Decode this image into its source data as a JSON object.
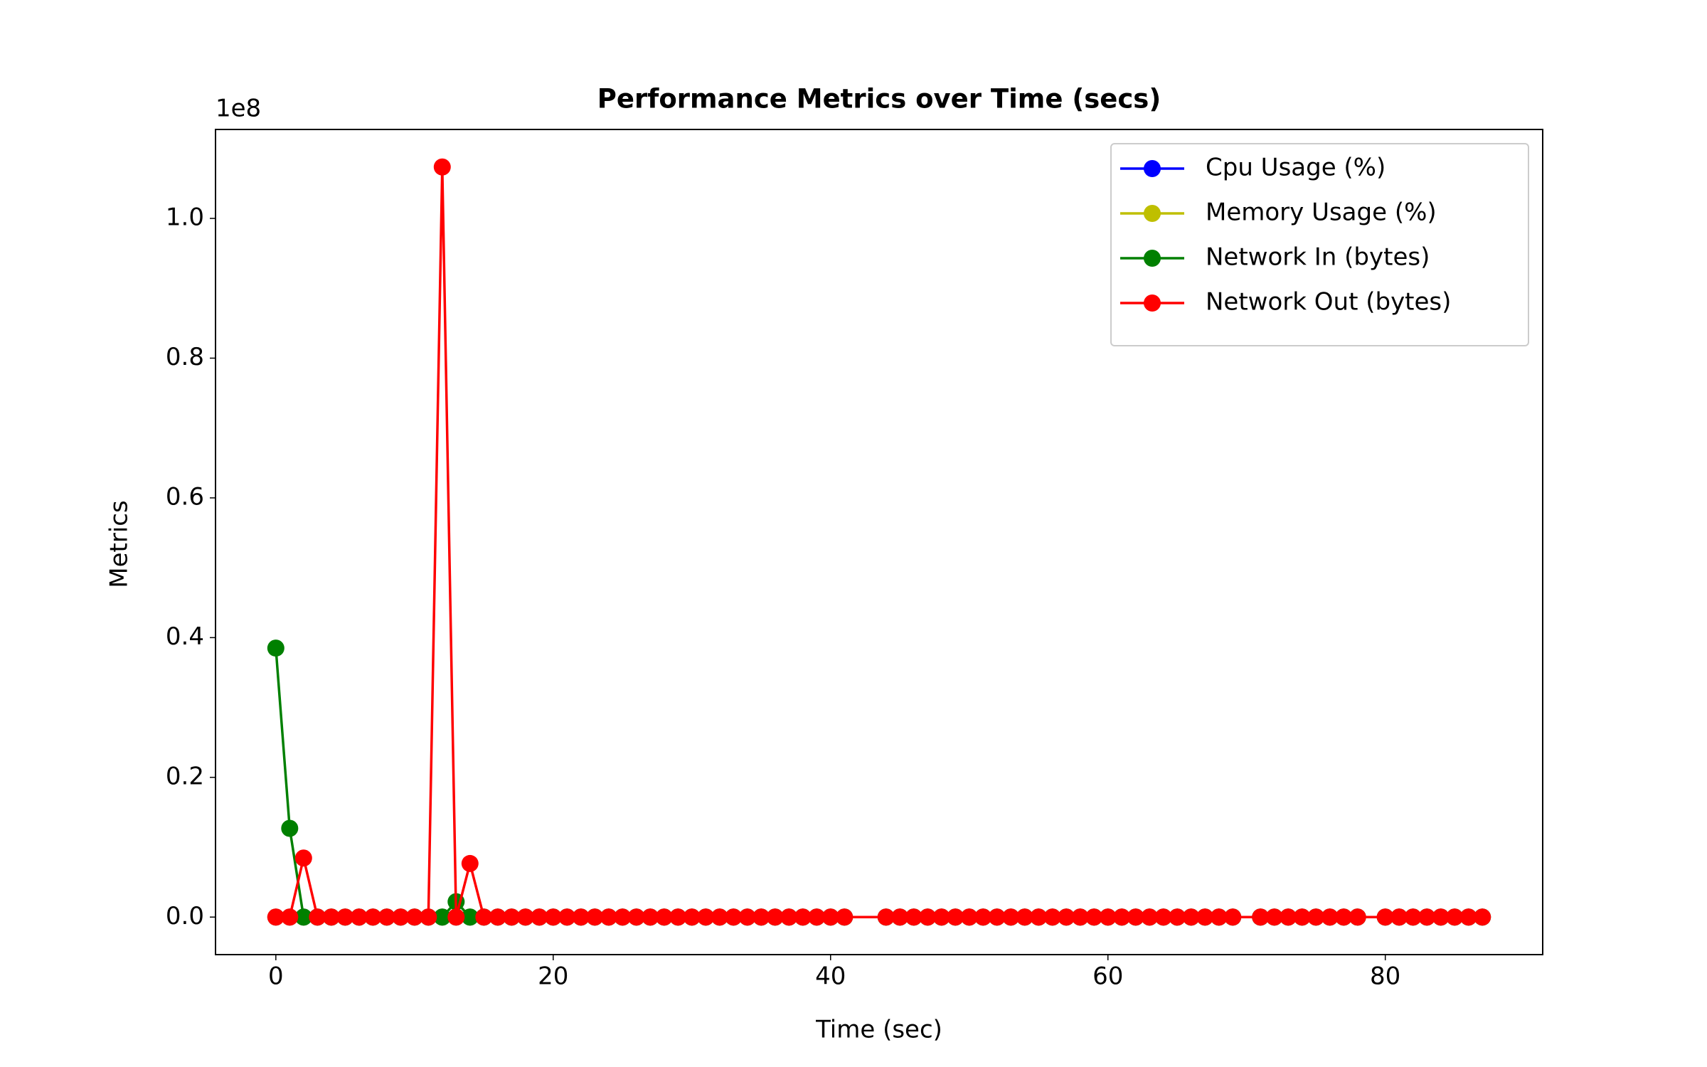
{
  "chart_data": {
    "type": "line",
    "title": "Performance Metrics over Time (secs)",
    "x_label": "Time (sec)",
    "y_label": "Metrics",
    "y_offset_label": "1e8",
    "x": [
      0,
      1,
      2,
      3,
      4,
      5,
      6,
      7,
      8,
      9,
      10,
      11,
      12,
      13,
      14,
      15,
      16,
      17,
      18,
      19,
      20,
      21,
      22,
      23,
      24,
      25,
      26,
      27,
      28,
      29,
      30,
      31,
      32,
      33,
      34,
      35,
      36,
      37,
      38,
      39,
      40,
      41,
      44,
      45,
      46,
      47,
      48,
      49,
      50,
      51,
      52,
      53,
      54,
      55,
      56,
      57,
      58,
      59,
      60,
      61,
      62,
      63,
      64,
      65,
      66,
      67,
      68,
      69,
      71,
      72,
      73,
      74,
      75,
      76,
      77,
      78,
      80,
      81,
      82,
      83,
      84,
      85,
      86,
      87
    ],
    "series": [
      {
        "name": "Cpu Usage (%)",
        "color": "#0000ff",
        "values": [
          0,
          0,
          0,
          0,
          0,
          0,
          0,
          0,
          0,
          0,
          0,
          0,
          0,
          0,
          0,
          0,
          0,
          0,
          0,
          0,
          0,
          0,
          0,
          0,
          0,
          0,
          0,
          0,
          0,
          0,
          0,
          0,
          0,
          0,
          0,
          0,
          0,
          0,
          0,
          0,
          0,
          0,
          0,
          0,
          0,
          0,
          0,
          0,
          0,
          0,
          0,
          0,
          0,
          0,
          0,
          0,
          0,
          0,
          0,
          0,
          0,
          0,
          0,
          0,
          0,
          0,
          0,
          0,
          0,
          0,
          0,
          0,
          0,
          0,
          0,
          0,
          0,
          0,
          0,
          0,
          0,
          0,
          0,
          0
        ]
      },
      {
        "name": "Memory Usage (%)",
        "color": "#bfbf00",
        "values": [
          0,
          0,
          0,
          0,
          0,
          0,
          0,
          0,
          0,
          0,
          0,
          0,
          0,
          0,
          0,
          0,
          0,
          0,
          0,
          0,
          0,
          0,
          0,
          0,
          0,
          0,
          0,
          0,
          0,
          0,
          0,
          0,
          0,
          0,
          0,
          0,
          0,
          0,
          0,
          0,
          0,
          0,
          0,
          0,
          0,
          0,
          0,
          0,
          0,
          0,
          0,
          0,
          0,
          0,
          0,
          0,
          0,
          0,
          0,
          0,
          0,
          0,
          0,
          0,
          0,
          0,
          0,
          0,
          0,
          0,
          0,
          0,
          0,
          0,
          0,
          0,
          0,
          0,
          0,
          0,
          0,
          0,
          0,
          0
        ]
      },
      {
        "name": "Network In (bytes)",
        "color": "#008000",
        "values": [
          38500000,
          12700000,
          0,
          0,
          0,
          0,
          0,
          0,
          0,
          0,
          0,
          0,
          0,
          2200000,
          0,
          0,
          0,
          0,
          0,
          0,
          0,
          0,
          0,
          0,
          0,
          0,
          0,
          0,
          0,
          0,
          0,
          0,
          0,
          0,
          0,
          0,
          0,
          0,
          0,
          0,
          0,
          0,
          0,
          0,
          0,
          0,
          0,
          0,
          0,
          0,
          0,
          0,
          0,
          0,
          0,
          0,
          0,
          0,
          0,
          0,
          0,
          0,
          0,
          0,
          0,
          0,
          0,
          0,
          0,
          0,
          0,
          0,
          0,
          0,
          0,
          0,
          0,
          0,
          0,
          0,
          0,
          0,
          0,
          0
        ]
      },
      {
        "name": "Network Out (bytes)",
        "color": "#ff0000",
        "values": [
          0,
          0,
          8450000,
          0,
          0,
          0,
          0,
          0,
          0,
          0,
          0,
          0,
          107360000,
          0,
          7670000,
          0,
          0,
          0,
          0,
          0,
          0,
          0,
          0,
          0,
          0,
          0,
          0,
          0,
          0,
          0,
          0,
          0,
          0,
          0,
          0,
          0,
          0,
          0,
          0,
          0,
          0,
          0,
          0,
          0,
          0,
          0,
          0,
          0,
          0,
          0,
          0,
          0,
          0,
          0,
          0,
          0,
          0,
          0,
          0,
          0,
          0,
          0,
          0,
          0,
          0,
          0,
          0,
          0,
          0,
          0,
          0,
          0,
          0,
          0,
          0,
          0,
          0,
          0,
          0,
          0,
          0,
          0,
          0,
          0
        ]
      }
    ],
    "xlim": [
      -4.35,
      91.35
    ],
    "ylim": [
      -5370000,
      112730000
    ],
    "xticks": [
      0,
      20,
      40,
      60,
      80
    ],
    "yticks": [
      {
        "value": 0,
        "label": "0.0"
      },
      {
        "value": 20000000,
        "label": "0.2"
      },
      {
        "value": 40000000,
        "label": "0.4"
      },
      {
        "value": 60000000,
        "label": "0.6"
      },
      {
        "value": 80000000,
        "label": "0.8"
      },
      {
        "value": 100000000,
        "label": "1.0"
      }
    ],
    "legend": "upper right",
    "grid": false
  }
}
